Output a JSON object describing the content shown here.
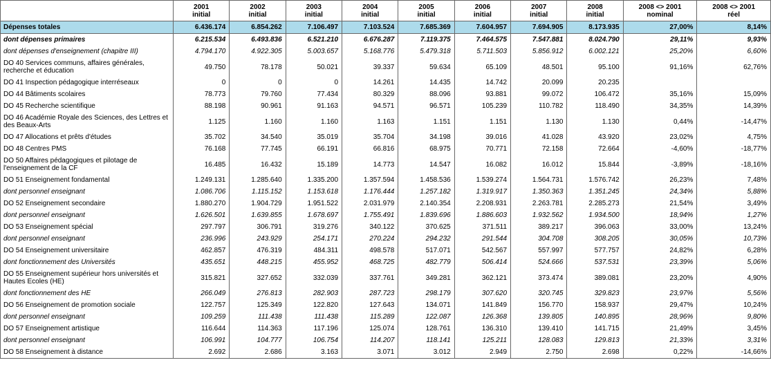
{
  "headers": [
    "",
    "2001 initial",
    "2002 initial",
    "2003 initial",
    "2004 initial",
    "2005 initial",
    "2006 initial",
    "2007 initial",
    "2008 initial",
    "2008 <> 2001 nominal",
    "2008 <> 2001 réel"
  ],
  "rows": [
    {
      "style": "total",
      "cells": [
        "Dépenses totales",
        "6.436.174",
        "6.854.262",
        "7.106.497",
        "7.103.524",
        "7.685.369",
        "7.604.957",
        "7.694.905",
        "8.173.935",
        "27,00%",
        "8,14%"
      ]
    },
    {
      "style": "bold italic",
      "cells": [
        "dont dépenses primaires",
        "6.215.534",
        "6.493.836",
        "6.521.210",
        "6.676.287",
        "7.119.375",
        "7.464.575",
        "7.547.881",
        "8.024.790",
        "29,11%",
        "9,93%"
      ]
    },
    {
      "style": "italic",
      "cells": [
        "dont dépenses d'enseignement (chapitre III)",
        "4.794.170",
        "4.922.305",
        "5.003.657",
        "5.168.776",
        "5.479.318",
        "5.711.503",
        "5.856.912",
        "6.002.121",
        "25,20%",
        "6,60%"
      ]
    },
    {
      "style": "",
      "cells": [
        "DO 40 Services communs, affaires générales, recherche et éducation",
        "49.750",
        "78.178",
        "50.021",
        "39.337",
        "59.634",
        "65.109",
        "48.501",
        "95.100",
        "91,16%",
        "62,76%"
      ]
    },
    {
      "style": "",
      "cells": [
        "DO 41 Inspection pédagogique interréseaux",
        "0",
        "0",
        "0",
        "14.261",
        "14.435",
        "14.742",
        "20.099",
        "20.235",
        "",
        ""
      ]
    },
    {
      "style": "",
      "cells": [
        "DO 44 Bâtiments scolaires",
        "78.773",
        "79.760",
        "77.434",
        "80.329",
        "88.096",
        "93.881",
        "99.072",
        "106.472",
        "35,16%",
        "15,09%"
      ]
    },
    {
      "style": "",
      "cells": [
        "DO 45 Recherche scientifique",
        "88.198",
        "90.961",
        "91.163",
        "94.571",
        "96.571",
        "105.239",
        "110.782",
        "118.490",
        "34,35%",
        "14,39%"
      ]
    },
    {
      "style": "",
      "cells": [
        "DO 46 Académie Royale des Sciences, des Lettres et des Beaux-Arts",
        "1.125",
        "1.160",
        "1.160",
        "1.163",
        "1.151",
        "1.151",
        "1.130",
        "1.130",
        "0,44%",
        "-14,47%"
      ]
    },
    {
      "style": "",
      "cells": [
        "DO 47 Allocations et prêts d'études",
        "35.702",
        "34.540",
        "35.019",
        "35.704",
        "34.198",
        "39.016",
        "41.028",
        "43.920",
        "23,02%",
        "4,75%"
      ]
    },
    {
      "style": "",
      "cells": [
        "DO 48 Centres PMS",
        "76.168",
        "77.745",
        "66.191",
        "66.816",
        "68.975",
        "70.771",
        "72.158",
        "72.664",
        "-4,60%",
        "-18,77%"
      ]
    },
    {
      "style": "",
      "cells": [
        "DO 50 Affaires pédagogiques et pilotage de l'enseignement de la CF",
        "16.485",
        "16.432",
        "15.189",
        "14.773",
        "14.547",
        "16.082",
        "16.012",
        "15.844",
        "-3,89%",
        "-18,16%"
      ]
    },
    {
      "style": "",
      "cells": [
        "DO 51 Enseignement fondamental",
        "1.249.131",
        "1.285.640",
        "1.335.200",
        "1.357.594",
        "1.458.536",
        "1.539.274",
        "1.564.731",
        "1.576.742",
        "26,23%",
        "7,48%"
      ]
    },
    {
      "style": "italic",
      "cells": [
        "dont personnel enseignant",
        "1.086.706",
        "1.115.152",
        "1.153.618",
        "1.176.444",
        "1.257.182",
        "1.319.917",
        "1.350.363",
        "1.351.245",
        "24,34%",
        "5,88%"
      ]
    },
    {
      "style": "",
      "cells": [
        "DO 52 Enseignement secondaire",
        "1.880.270",
        "1.904.729",
        "1.951.522",
        "2.031.979",
        "2.140.354",
        "2.208.931",
        "2.263.781",
        "2.285.273",
        "21,54%",
        "3,49%"
      ]
    },
    {
      "style": "italic",
      "cells": [
        "dont personnel enseignant",
        "1.626.501",
        "1.639.855",
        "1.678.697",
        "1.755.491",
        "1.839.696",
        "1.886.603",
        "1.932.562",
        "1.934.500",
        "18,94%",
        "1,27%"
      ]
    },
    {
      "style": "",
      "cells": [
        "DO 53 Enseignement spécial",
        "297.797",
        "306.791",
        "319.276",
        "340.122",
        "370.625",
        "371.511",
        "389.217",
        "396.063",
        "33,00%",
        "13,24%"
      ]
    },
    {
      "style": "italic",
      "cells": [
        "dont personnel enseignant",
        "236.996",
        "243.929",
        "254.171",
        "270.224",
        "294.232",
        "291.544",
        "304.708",
        "308.205",
        "30,05%",
        "10,73%"
      ]
    },
    {
      "style": "",
      "cells": [
        "DO 54 Enseignement universitaire",
        "462.857",
        "476.319",
        "484.311",
        "498.578",
        "517.071",
        "542.567",
        "557.997",
        "577.757",
        "24,82%",
        "6,28%"
      ]
    },
    {
      "style": "italic",
      "cells": [
        "dont fonctionnement des Universités",
        "435.651",
        "448.215",
        "455.952",
        "468.725",
        "482.779",
        "506.414",
        "524.666",
        "537.531",
        "23,39%",
        "5,06%"
      ]
    },
    {
      "style": "",
      "cells": [
        "DO 55 Enseignement supérieur hors universités et Hautes Ecoles (HE)",
        "315.821",
        "327.652",
        "332.039",
        "337.761",
        "349.281",
        "362.121",
        "373.474",
        "389.081",
        "23,20%",
        "4,90%"
      ]
    },
    {
      "style": "italic",
      "cells": [
        "dont fonctionnement des HE",
        "266.049",
        "276.813",
        "282.903",
        "287.723",
        "298.179",
        "307.620",
        "320.745",
        "329.823",
        "23,97%",
        "5,56%"
      ]
    },
    {
      "style": "",
      "cells": [
        "DO 56 Enseignement de promotion sociale",
        "122.757",
        "125.349",
        "122.820",
        "127.643",
        "134.071",
        "141.849",
        "156.770",
        "158.937",
        "29,47%",
        "10,24%"
      ]
    },
    {
      "style": "italic",
      "cells": [
        "dont personnel enseignant",
        "109.259",
        "111.438",
        "111.438",
        "115.289",
        "122.087",
        "126.368",
        "139.805",
        "140.895",
        "28,96%",
        "9,80%"
      ]
    },
    {
      "style": "",
      "cells": [
        "DO 57 Enseignement artistique",
        "116.644",
        "114.363",
        "117.196",
        "125.074",
        "128.761",
        "136.310",
        "139.410",
        "141.715",
        "21,49%",
        "3,45%"
      ]
    },
    {
      "style": "italic",
      "cells": [
        "dont personnel enseignant",
        "106.991",
        "104.777",
        "106.754",
        "114.207",
        "118.141",
        "125.211",
        "128.083",
        "129.813",
        "21,33%",
        "3,31%"
      ]
    },
    {
      "style": "",
      "cells": [
        "DO 58 Enseignement à distance",
        "2.692",
        "2.686",
        "3.163",
        "3.071",
        "3.012",
        "2.949",
        "2.750",
        "2.698",
        "0,22%",
        "-14,66%"
      ]
    }
  ]
}
